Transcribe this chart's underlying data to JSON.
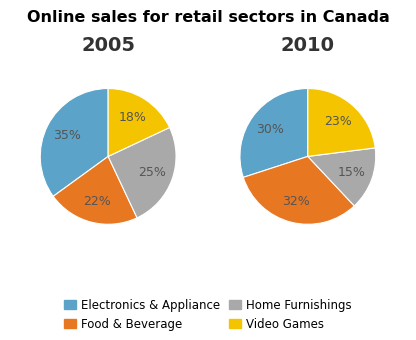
{
  "title": "Online sales for retail sectors in Canada",
  "title_fontsize": 11.5,
  "year_2005_label": "2005",
  "year_2010_label": "2010",
  "year_label_fontsize": 14,
  "categories": [
    "Electronics & Appliance",
    "Food & Beverage",
    "Home Furnishings",
    "Video Games"
  ],
  "colors": [
    "#5BA3C9",
    "#E87722",
    "#A9A9A9",
    "#F5C400"
  ],
  "values_2005": [
    35,
    22,
    25,
    18
  ],
  "values_2010": [
    30,
    32,
    15,
    23
  ],
  "startangle": 90,
  "background_color": "#ffffff",
  "legend_fontsize": 8.5,
  "pct_fontsize": 9,
  "label_color": "#555555"
}
